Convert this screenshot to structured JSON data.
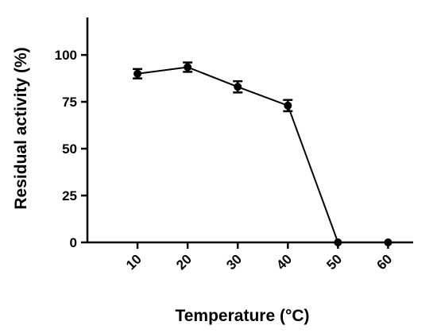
{
  "chart_data": {
    "type": "line",
    "title": "",
    "xlabel": "Temperature (°C)",
    "ylabel": "Residual activity (%)",
    "x": [
      10,
      20,
      30,
      40,
      50,
      60
    ],
    "x_tick_labels": [
      "10",
      "20",
      "30",
      "40",
      "50",
      "60"
    ],
    "xlim": [
      0,
      65
    ],
    "ylim": [
      0,
      120
    ],
    "y_ticks": [
      0,
      25,
      50,
      75,
      100
    ],
    "y_tick_labels": [
      "0",
      "25",
      "50",
      "75",
      "100"
    ],
    "grid": false,
    "legend": "none",
    "series": [
      {
        "values": [
          90,
          93.5,
          83,
          73,
          0,
          0
        ],
        "error": [
          2.5,
          2.5,
          3,
          3,
          0,
          0
        ],
        "color": "#000000",
        "marker": "circle"
      }
    ]
  }
}
